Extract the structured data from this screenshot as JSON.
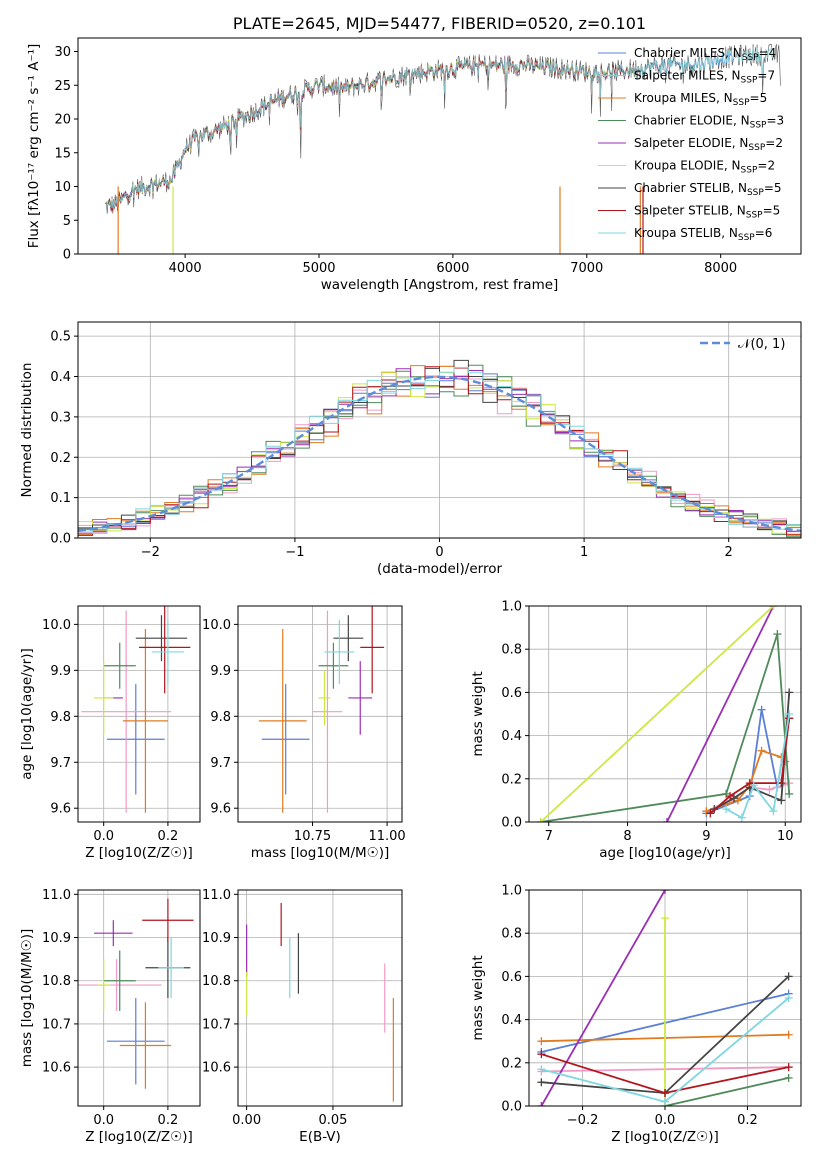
{
  "chart_data": [
    {
      "id": "spectrum",
      "type": "line",
      "title": "PLATE=2645, MJD=54477, FIBERID=0520, z=0.101",
      "xlabel": "wavelength [Angstrom, rest frame]",
      "ylabel": "Flux [fλ10⁻¹⁷ erg cm⁻² s⁻¹ A⁻¹]",
      "xlim": [
        3200,
        8600
      ],
      "ylim": [
        0,
        32
      ],
      "xticks": [
        4000,
        5000,
        6000,
        7000,
        8000
      ],
      "yticks": [
        0,
        5,
        10,
        15,
        20,
        25,
        30
      ],
      "grid": false,
      "legend_position": "top-right",
      "continuum": {
        "x": [
          3400,
          3500,
          3600,
          3700,
          3800,
          3900,
          4000,
          4100,
          4200,
          4300,
          4500,
          4700,
          5000,
          5200,
          5500,
          5800,
          6000,
          6200,
          6500,
          6800,
          7000,
          7200,
          7400,
          7600,
          7800,
          8000,
          8200,
          8400
        ],
        "y": [
          7,
          7.5,
          9.5,
          10,
          10.5,
          11,
          15.5,
          17.5,
          18,
          19,
          21,
          23,
          25,
          24.5,
          26,
          27,
          27.5,
          28,
          28,
          27.5,
          27,
          27,
          27.5,
          28,
          28,
          29,
          29.5,
          29.5
        ]
      },
      "series": [
        {
          "name": "Chabrier MILES, N_SSP=4",
          "color": "#5b7fd6"
        },
        {
          "name": "Salpeter MILES, N_SSP=7",
          "color": "#f19ac5"
        },
        {
          "name": "Kroupa MILES, N_SSP=5",
          "color": "#e07b22"
        },
        {
          "name": "Chabrier ELODIE, N_SSP=3",
          "color": "#4f8a5b"
        },
        {
          "name": "Salpeter ELODIE, N_SSP=2",
          "color": "#9a2fb5"
        },
        {
          "name": "Kroupa ELODIE, N_SSP=2",
          "color": "#cde843"
        },
        {
          "name": "Chabrier STELIB, N_SSP=5",
          "color": "#444444"
        },
        {
          "name": "Salpeter STELIB, N_SSP=5",
          "color": "#b3151d"
        },
        {
          "name": "Kroupa STELIB, N_SSP=6",
          "color": "#7fd7df"
        }
      ]
    },
    {
      "id": "residuals",
      "type": "line",
      "xlabel": "(data-model)/error",
      "ylabel": "Normed distribution",
      "xlim": [
        -2.5,
        2.5
      ],
      "ylim": [
        0,
        0.535
      ],
      "xticks": [
        -2,
        -1,
        0,
        1,
        2
      ],
      "yticks": [
        0.0,
        0.1,
        0.2,
        0.3,
        0.4,
        0.5
      ],
      "grid": true,
      "legend": "𝒩(0, 1)",
      "legend_position": "top-right",
      "gaussian": {
        "mean": 0,
        "sigma": 1,
        "color": "#5b8ddb"
      }
    },
    {
      "id": "age-vs-Z",
      "type": "scatter",
      "xlabel": "Z [log10(Z/Z☉)]",
      "ylabel": "age  [log10(age/yr)]",
      "xlim": [
        -0.08,
        0.3
      ],
      "ylim": [
        9.57,
        10.04
      ],
      "xticks": [
        0.0,
        0.2
      ],
      "yticks": [
        9.6,
        9.7,
        9.8,
        9.9,
        10.0
      ],
      "grid": true,
      "points": [
        {
          "x": 0.1,
          "y": 9.75,
          "xerr": 0.09,
          "yerr": 0.12,
          "color": "#5b7fd6"
        },
        {
          "x": 0.07,
          "y": 9.81,
          "xerr": 0.14,
          "yerr": 0.22,
          "color": "#f19ac5"
        },
        {
          "x": 0.13,
          "y": 9.79,
          "xerr": 0.07,
          "yerr": 0.2,
          "color": "#e07b22"
        },
        {
          "x": 0.05,
          "y": 9.91,
          "xerr": 0.05,
          "yerr": 0.05,
          "color": "#4f8a5b"
        },
        {
          "x": 0.03,
          "y": 9.84,
          "xerr": 0.03,
          "yerr": 0.0,
          "color": "#9a2fb5"
        },
        {
          "x": 0.0,
          "y": 9.84,
          "xerr": 0.03,
          "yerr": 0.08,
          "color": "#cde843"
        },
        {
          "x": 0.18,
          "y": 9.97,
          "xerr": 0.08,
          "yerr": 0.05,
          "color": "#444444"
        },
        {
          "x": 0.19,
          "y": 9.95,
          "xerr": 0.08,
          "yerr": 0.1,
          "color": "#b3151d"
        },
        {
          "x": 0.2,
          "y": 9.94,
          "xerr": 0.05,
          "yerr": 0.07,
          "color": "#7fd7df"
        }
      ]
    },
    {
      "id": "age-vs-mass",
      "type": "scatter",
      "xlabel": "mass [log10(M/M☉)]",
      "ylabel": "",
      "xlim": [
        10.5,
        11.05
      ],
      "ylim": [
        9.57,
        10.04
      ],
      "xticks": [
        10.75,
        11.0
      ],
      "yticks": [
        9.6,
        9.7,
        9.8,
        9.9,
        10.0
      ],
      "grid": true,
      "points": [
        {
          "x": 10.66,
          "y": 9.75,
          "xerr": 0.08,
          "yerr": 0.12,
          "color": "#5b7fd6"
        },
        {
          "x": 10.8,
          "y": 9.81,
          "xerr": 0.05,
          "yerr": 0.22,
          "color": "#f19ac5"
        },
        {
          "x": 10.65,
          "y": 9.79,
          "xerr": 0.08,
          "yerr": 0.2,
          "color": "#e07b22"
        },
        {
          "x": 10.82,
          "y": 9.91,
          "xerr": 0.05,
          "yerr": 0.05,
          "color": "#4f8a5b"
        },
        {
          "x": 10.91,
          "y": 9.84,
          "xerr": 0.04,
          "yerr": 0.08,
          "color": "#9a2fb5"
        },
        {
          "x": 10.79,
          "y": 9.84,
          "xerr": 0.02,
          "yerr": 0.06,
          "color": "#cde843"
        },
        {
          "x": 10.87,
          "y": 9.97,
          "xerr": 0.05,
          "yerr": 0.05,
          "color": "#444444"
        },
        {
          "x": 10.95,
          "y": 9.95,
          "xerr": 0.04,
          "yerr": 0.1,
          "color": "#b3151d"
        },
        {
          "x": 10.84,
          "y": 9.94,
          "xerr": 0.05,
          "yerr": 0.07,
          "color": "#7fd7df"
        }
      ]
    },
    {
      "id": "weight-vs-age",
      "type": "line",
      "xlabel": "age  [log10(age/yr)]",
      "ylabel": "mass weight",
      "xlim": [
        6.75,
        10.2
      ],
      "ylim": [
        0,
        1
      ],
      "xticks": [
        7,
        8,
        9,
        10
      ],
      "yticks": [
        0.0,
        0.2,
        0.4,
        0.6,
        0.8,
        1.0
      ],
      "grid": true,
      "series": [
        {
          "color": "#5b7fd6",
          "x": [
            9.0,
            9.55,
            9.7,
            9.9,
            10.05
          ],
          "y": [
            0.04,
            0.12,
            0.52,
            0.16,
            0.48
          ]
        },
        {
          "color": "#f19ac5",
          "x": [
            9.0,
            9.3,
            9.55,
            9.8,
            10.05
          ],
          "y": [
            0.05,
            0.1,
            0.16,
            0.15,
            0.18
          ]
        },
        {
          "color": "#e07b22",
          "x": [
            9.0,
            9.4,
            9.55,
            9.7,
            9.95,
            10.0
          ],
          "y": [
            0.05,
            0.1,
            0.17,
            0.33,
            0.3,
            0.28
          ]
        },
        {
          "color": "#4f8a5b",
          "x": [
            6.9,
            9.25,
            9.9,
            10.05
          ],
          "y": [
            0.0,
            0.13,
            0.87,
            0.13
          ]
        },
        {
          "color": "#9a2fb5",
          "x": [
            8.5,
            9.85
          ],
          "y": [
            0.0,
            1.0
          ]
        },
        {
          "color": "#cde843",
          "x": [
            6.9,
            9.85
          ],
          "y": [
            0.0,
            1.0
          ]
        },
        {
          "color": "#444444",
          "x": [
            9.1,
            9.35,
            9.55,
            9.95,
            10.05
          ],
          "y": [
            0.06,
            0.11,
            0.16,
            0.1,
            0.6
          ]
        },
        {
          "color": "#b3151d",
          "x": [
            9.05,
            9.3,
            9.55,
            9.95,
            10.05
          ],
          "y": [
            0.04,
            0.12,
            0.18,
            0.18,
            0.48
          ]
        },
        {
          "color": "#7fd7df",
          "x": [
            9.25,
            9.45,
            9.6,
            9.85,
            9.9,
            10.05
          ],
          "y": [
            0.06,
            0.02,
            0.17,
            0.05,
            0.16,
            0.5
          ]
        }
      ]
    },
    {
      "id": "mass-vs-Z",
      "type": "scatter",
      "xlabel": "Z [log10(Z/Z☉)]",
      "ylabel": "mass [log10(M/M☉)]",
      "xlim": [
        -0.08,
        0.3
      ],
      "ylim": [
        10.51,
        11.01
      ],
      "xticks": [
        0.0,
        0.2
      ],
      "yticks": [
        10.6,
        10.7,
        10.8,
        10.9,
        11.0
      ],
      "grid": true,
      "points": [
        {
          "x": 0.1,
          "y": 10.66,
          "xerr": 0.09,
          "yerr": 0.1,
          "color": "#5b7fd6"
        },
        {
          "x": 0.04,
          "y": 10.79,
          "xerr": 0.14,
          "yerr": 0.06,
          "color": "#f19ac5"
        },
        {
          "x": 0.13,
          "y": 10.65,
          "xerr": 0.08,
          "yerr": 0.1,
          "color": "#e07b22"
        },
        {
          "x": 0.05,
          "y": 10.8,
          "xerr": 0.05,
          "yerr": 0.07,
          "color": "#4f8a5b"
        },
        {
          "x": 0.03,
          "y": 10.91,
          "xerr": 0.06,
          "yerr": 0.03,
          "color": "#9a2fb5"
        },
        {
          "x": 0.0,
          "y": 10.79,
          "xerr": 0.02,
          "yerr": 0.06,
          "color": "#cde843"
        },
        {
          "x": 0.2,
          "y": 10.83,
          "xerr": 0.07,
          "yerr": 0.07,
          "color": "#444444"
        },
        {
          "x": 0.2,
          "y": 10.94,
          "xerr": 0.08,
          "yerr": 0.05,
          "color": "#b3151d"
        },
        {
          "x": 0.21,
          "y": 10.83,
          "xerr": 0.04,
          "yerr": 0.07,
          "color": "#7fd7df"
        }
      ]
    },
    {
      "id": "mass-vs-ebv",
      "type": "scatter",
      "xlabel": "E(B-V)",
      "ylabel": "",
      "xlim": [
        -0.005,
        0.09
      ],
      "ylim": [
        10.51,
        11.01
      ],
      "xticks": [
        0.0,
        0.05
      ],
      "yticks": [
        10.6,
        10.7,
        10.8,
        10.9,
        11.0
      ],
      "grid": true,
      "points": [
        {
          "x": 0.08,
          "y": 10.76,
          "xerr": 0,
          "yerr": 0.08,
          "color": "#f19ac5"
        },
        {
          "x": 0.085,
          "y": 10.64,
          "xerr": 0,
          "yerr": 0.12,
          "color": "#e07b22"
        },
        {
          "x": 0.0,
          "y": 10.87,
          "xerr": 0,
          "yerr": 0.06,
          "color": "#9a2fb5"
        },
        {
          "x": 0.0,
          "y": 10.77,
          "xerr": 0,
          "yerr": 0.05,
          "color": "#cde843"
        },
        {
          "x": 0.02,
          "y": 10.93,
          "xerr": 0,
          "yerr": 0.05,
          "color": "#b3151d"
        },
        {
          "x": 0.025,
          "y": 10.83,
          "xerr": 0,
          "yerr": 0.07,
          "color": "#7fd7df"
        },
        {
          "x": 0.03,
          "y": 10.84,
          "xerr": 0,
          "yerr": 0.07,
          "color": "#444444"
        }
      ]
    },
    {
      "id": "weight-vs-Z",
      "type": "line",
      "xlabel": "Z [log10(Z/Z☉)]",
      "ylabel": "mass weight",
      "xlim": [
        -0.33,
        0.33
      ],
      "ylim": [
        0,
        1
      ],
      "xticks": [
        -0.2,
        0.0,
        0.2
      ],
      "yticks": [
        0.0,
        0.2,
        0.4,
        0.6,
        0.8,
        1.0
      ],
      "grid": true,
      "series": [
        {
          "color": "#5b7fd6",
          "x": [
            -0.3,
            0.3
          ],
          "y": [
            0.25,
            0.52
          ]
        },
        {
          "color": "#f19ac5",
          "x": [
            -0.3,
            0.3
          ],
          "y": [
            0.16,
            0.18
          ]
        },
        {
          "color": "#e07b22",
          "x": [
            -0.3,
            0.3
          ],
          "y": [
            0.3,
            0.33
          ]
        },
        {
          "color": "#4f8a5b",
          "x": [
            0.0,
            0.3
          ],
          "y": [
            0.0,
            0.13
          ]
        },
        {
          "color": "#9a2fb5",
          "x": [
            -0.3,
            0.0
          ],
          "y": [
            0.0,
            1.0
          ]
        },
        {
          "color": "#cde843",
          "x": [
            0.0,
            0.0
          ],
          "y": [
            0.0,
            0.87
          ]
        },
        {
          "color": "#444444",
          "x": [
            -0.3,
            0.0,
            0.3
          ],
          "y": [
            0.11,
            0.06,
            0.6
          ]
        },
        {
          "color": "#b3151d",
          "x": [
            -0.3,
            0.0,
            0.3
          ],
          "y": [
            0.24,
            0.06,
            0.18
          ]
        },
        {
          "color": "#7fd7df",
          "x": [
            -0.3,
            0.0,
            0.3
          ],
          "y": [
            0.17,
            0.02,
            0.5
          ]
        }
      ]
    }
  ]
}
